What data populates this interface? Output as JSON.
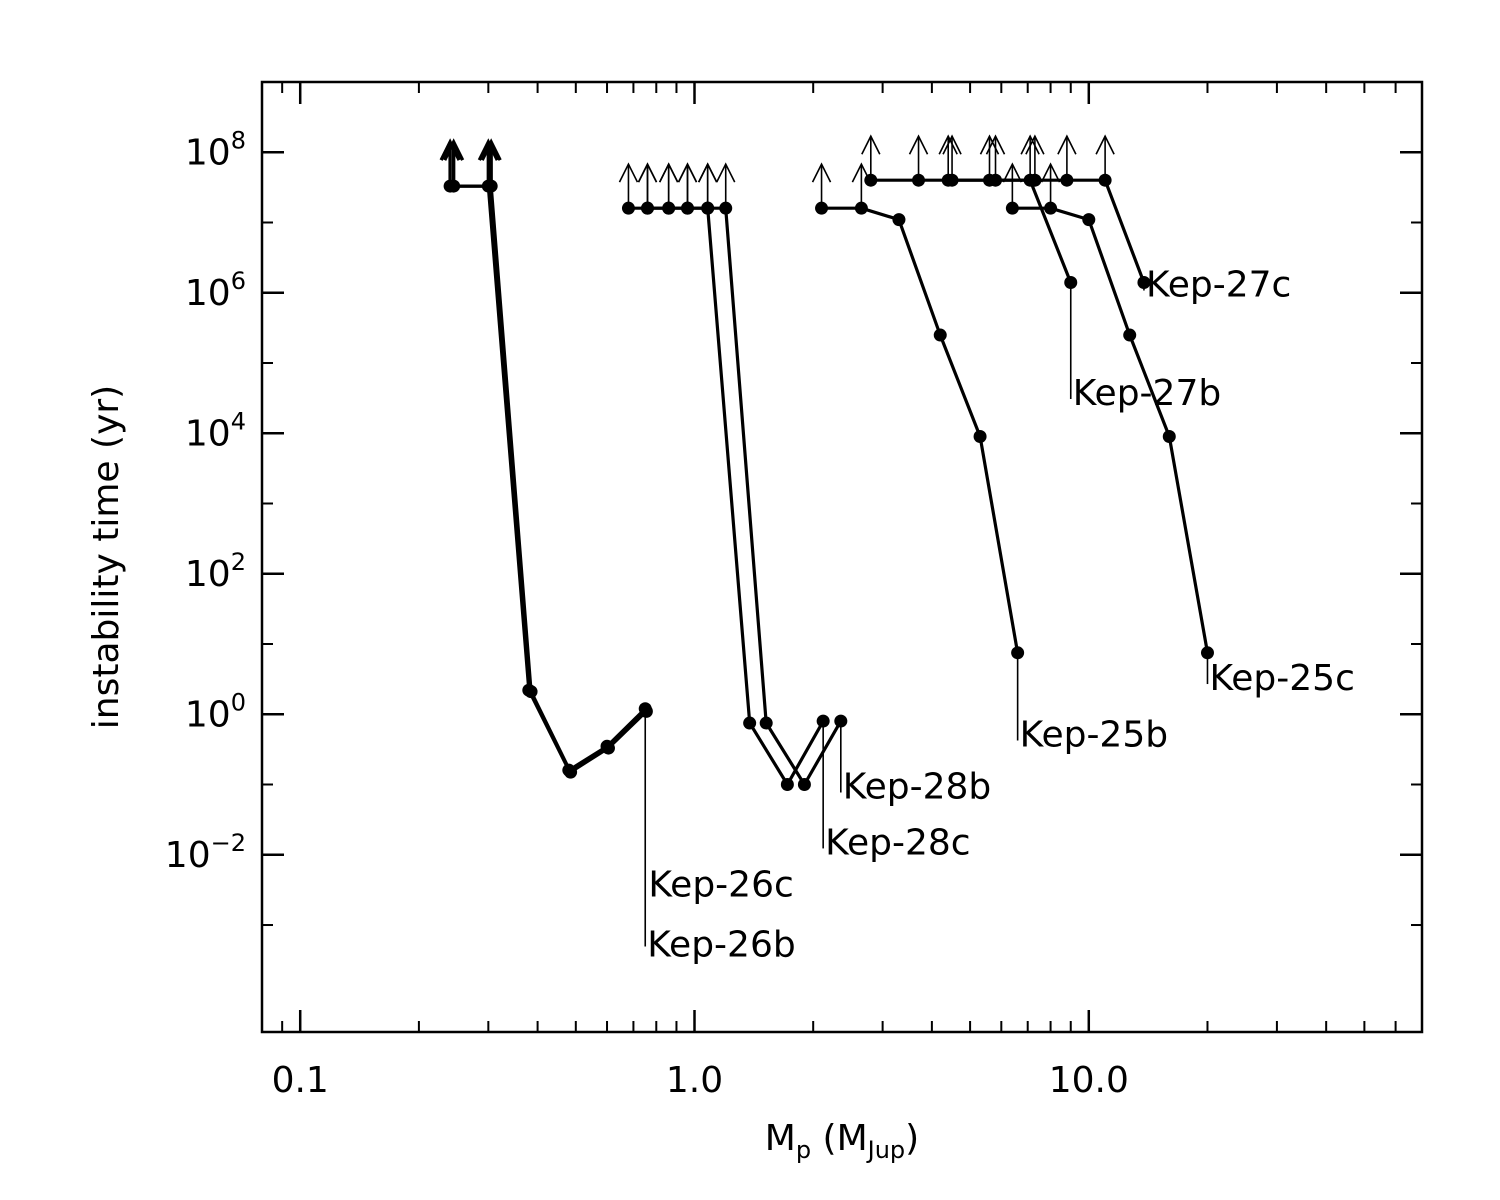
{
  "chart_data": {
    "type": "line",
    "xlabel": "Mp (MJup)",
    "xlabel_parts": {
      "main": "M",
      "sub": "p",
      "open": " (M",
      "sub2": "Jup",
      "close": ")"
    },
    "ylabel": "instability time (yr)",
    "xscale": "log",
    "yscale": "log",
    "xlim": [
      0.08,
      70
    ],
    "ylim": [
      3e-05,
      1000000000
    ],
    "x_ticks": [
      {
        "value": 0.1,
        "label": "0.1"
      },
      {
        "value": 1.0,
        "label": "1.0"
      },
      {
        "value": 10.0,
        "label": "10.0"
      }
    ],
    "y_ticks": [
      {
        "value": 0.01,
        "base": "10",
        "exp": "−2"
      },
      {
        "value": 1,
        "base": "10",
        "exp": "0"
      },
      {
        "value": 100,
        "base": "10",
        "exp": "2"
      },
      {
        "value": 10000,
        "base": "10",
        "exp": "4"
      },
      {
        "value": 1000000,
        "base": "10",
        "exp": "6"
      },
      {
        "value": 100000000,
        "base": "10",
        "exp": "8"
      }
    ],
    "series": [
      {
        "name": "Kep-26b",
        "bold": true,
        "points": [
          [
            0.24,
            33000000
          ],
          [
            0.3,
            33000000
          ],
          [
            0.38,
            2.2
          ],
          [
            0.48,
            0.16
          ],
          [
            0.6,
            0.35
          ],
          [
            0.75,
            1.2
          ]
        ],
        "lower_limit_count": 2,
        "label_anchor": [
          0.75,
          0.0046
        ],
        "label_offset": "lower"
      },
      {
        "name": "Kep-26c",
        "bold": true,
        "points": [
          [
            0.245,
            33000000
          ],
          [
            0.305,
            33000000
          ],
          [
            0.385,
            2.1
          ],
          [
            0.485,
            0.15
          ],
          [
            0.605,
            0.33
          ],
          [
            0.755,
            1.1
          ]
        ],
        "lower_limit_count": 2,
        "label_anchor": [
          0.75,
          0.0046
        ],
        "label_offset": "upper"
      },
      {
        "name": "Kep-28c",
        "bold": false,
        "points": [
          [
            0.68,
            16000000
          ],
          [
            0.76,
            16000000
          ],
          [
            0.86,
            16000000
          ],
          [
            0.96,
            16000000
          ],
          [
            1.08,
            16000000
          ],
          [
            1.38,
            0.75
          ],
          [
            1.72,
            0.1
          ],
          [
            2.12,
            0.8
          ]
        ],
        "lower_limit_count": 5,
        "label_anchor": [
          2.12,
          0.016
        ]
      },
      {
        "name": "Kep-28b",
        "bold": false,
        "points": [
          [
            0.76,
            16000000
          ],
          [
            0.86,
            16000000
          ],
          [
            0.96,
            16000000
          ],
          [
            1.08,
            16000000
          ],
          [
            1.2,
            16000000
          ],
          [
            1.52,
            0.75
          ],
          [
            1.9,
            0.1
          ],
          [
            2.35,
            0.8
          ]
        ],
        "lower_limit_count": 5,
        "label_anchor": [
          2.35,
          0.1
        ]
      },
      {
        "name": "Kep-25b",
        "bold": false,
        "points": [
          [
            2.1,
            16000000
          ],
          [
            2.65,
            16000000
          ],
          [
            3.3,
            11000000
          ],
          [
            4.2,
            250000
          ],
          [
            5.3,
            9000
          ],
          [
            6.6,
            7.5
          ]
        ],
        "lower_limit_count": 2,
        "label_anchor": [
          6.6,
          0.55
        ]
      },
      {
        "name": "Kep-27b",
        "bold": false,
        "points": [
          [
            2.8,
            40000000
          ],
          [
            3.7,
            40000000
          ],
          [
            4.5,
            40000000
          ],
          [
            5.6,
            40000000
          ],
          [
            7.1,
            40000000
          ],
          [
            9.0,
            1400000
          ]
        ],
        "lower_limit_count": 5,
        "label_anchor": [
          9.0,
          40000
        ]
      },
      {
        "name": "Kep-25c",
        "bold": false,
        "points": [
          [
            6.4,
            16000000
          ],
          [
            8.0,
            16000000
          ],
          [
            10.0,
            11000000
          ],
          [
            12.7,
            250000
          ],
          [
            16.0,
            9000
          ],
          [
            20.0,
            7.5
          ]
        ],
        "lower_limit_count": 2,
        "label_anchor": [
          20.0,
          3.5
        ]
      },
      {
        "name": "Kep-27c",
        "bold": false,
        "points": [
          [
            4.4,
            40000000
          ],
          [
            5.8,
            40000000
          ],
          [
            7.3,
            40000000
          ],
          [
            8.8,
            40000000
          ],
          [
            11.0,
            40000000
          ],
          [
            13.8,
            1400000
          ]
        ],
        "lower_limit_count": 5,
        "label_anchor": [
          13.8,
          1400000
        ]
      }
    ]
  }
}
